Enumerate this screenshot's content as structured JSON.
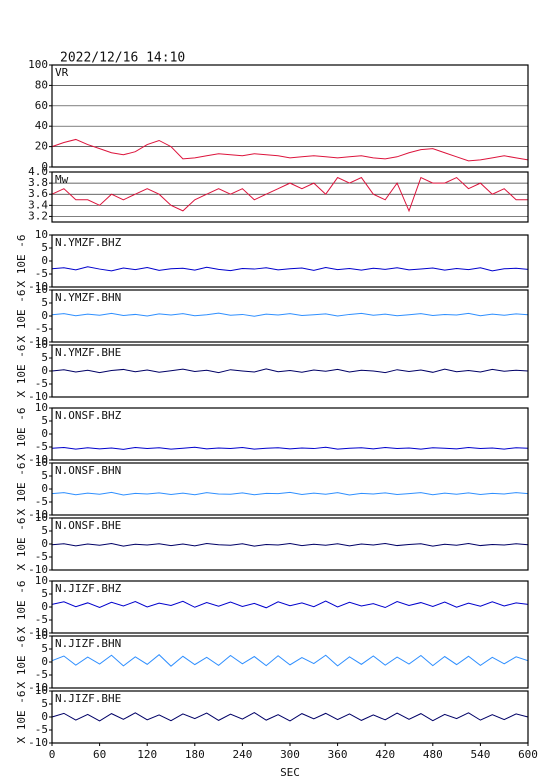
{
  "chart_data": [
    {
      "type": "line",
      "title": "2022/12/16 14:10",
      "label": "VR",
      "color": "#dc143c",
      "grid": true,
      "xlim": [
        0,
        600
      ],
      "ylim": [
        0,
        100
      ],
      "yticks": [
        0,
        20,
        40,
        60,
        80,
        100
      ],
      "x": [
        0,
        15,
        30,
        45,
        60,
        75,
        90,
        105,
        120,
        135,
        150,
        165,
        180,
        195,
        210,
        225,
        240,
        255,
        270,
        285,
        300,
        315,
        330,
        345,
        360,
        375,
        390,
        405,
        420,
        435,
        450,
        465,
        480,
        495,
        510,
        525,
        540,
        555,
        570,
        585,
        600
      ],
      "values": [
        20,
        24,
        27,
        22,
        18,
        14,
        12,
        15,
        22,
        26,
        20,
        8,
        9,
        11,
        13,
        12,
        11,
        13,
        12,
        11,
        9,
        10,
        11,
        10,
        9,
        10,
        11,
        9,
        8,
        10,
        14,
        17,
        18,
        14,
        10,
        6,
        7,
        9,
        11,
        9,
        7
      ]
    },
    {
      "type": "line",
      "label": "Mw",
      "color": "#dc143c",
      "grid": true,
      "xlim": [
        0,
        600
      ],
      "ylim": [
        3.1,
        4.0
      ],
      "yticks": [
        3.2,
        3.4,
        3.6,
        3.8,
        {
          "value": 4,
          "label": "4.0"
        }
      ],
      "x": [
        0,
        15,
        30,
        45,
        60,
        75,
        90,
        105,
        120,
        135,
        150,
        165,
        180,
        195,
        210,
        225,
        240,
        255,
        270,
        285,
        300,
        315,
        330,
        345,
        360,
        375,
        390,
        405,
        420,
        435,
        450,
        465,
        480,
        495,
        510,
        525,
        540,
        555,
        570,
        585,
        600
      ],
      "values": [
        3.6,
        3.7,
        3.5,
        3.5,
        3.4,
        3.6,
        3.5,
        3.6,
        3.7,
        3.6,
        3.4,
        3.3,
        3.5,
        3.6,
        3.7,
        3.6,
        3.7,
        3.5,
        3.6,
        3.7,
        3.8,
        3.7,
        3.8,
        3.6,
        3.9,
        3.8,
        3.9,
        3.6,
        3.5,
        3.8,
        3.3,
        3.9,
        3.8,
        3.8,
        3.9,
        3.7,
        3.8,
        3.6,
        3.7,
        3.5,
        3.5
      ]
    },
    {
      "type": "line",
      "label": "N.YMZF.BHZ",
      "ylabel": "X 10E -6",
      "color": "#0000cc",
      "xlim": [
        0,
        600
      ],
      "ylim": [
        -10,
        10
      ],
      "yticks": [
        -10,
        -5,
        0,
        5,
        10
      ],
      "x": [
        0,
        15,
        30,
        45,
        60,
        75,
        90,
        105,
        120,
        135,
        150,
        165,
        180,
        195,
        210,
        225,
        240,
        255,
        270,
        285,
        300,
        315,
        330,
        345,
        360,
        375,
        390,
        405,
        420,
        435,
        450,
        465,
        480,
        495,
        510,
        525,
        540,
        555,
        570,
        585,
        600
      ],
      "values": [
        -3,
        -2.6,
        -3.4,
        -2.2,
        -3.1,
        -3.8,
        -2.7,
        -3.3,
        -2.5,
        -3.6,
        -3.0,
        -2.8,
        -3.5,
        -2.4,
        -3.2,
        -3.7,
        -2.9,
        -3.1,
        -2.6,
        -3.4,
        -3.0,
        -2.7,
        -3.6,
        -2.5,
        -3.3,
        -2.9,
        -3.5,
        -2.8,
        -3.2,
        -2.6,
        -3.4,
        -3.1,
        -2.7,
        -3.5,
        -2.9,
        -3.3,
        -2.6,
        -3.8,
        -3.0,
        -2.8,
        -3.2
      ]
    },
    {
      "type": "line",
      "label": "N.YMZF.BHN",
      "ylabel": "X 10E -6",
      "color": "#2f8fff",
      "xlim": [
        0,
        600
      ],
      "ylim": [
        -10,
        10
      ],
      "yticks": [
        -10,
        -5,
        0,
        5,
        10
      ],
      "x": [
        0,
        15,
        30,
        45,
        60,
        75,
        90,
        105,
        120,
        135,
        150,
        165,
        180,
        195,
        210,
        225,
        240,
        255,
        270,
        285,
        300,
        315,
        330,
        345,
        360,
        375,
        390,
        405,
        420,
        435,
        450,
        465,
        480,
        495,
        510,
        525,
        540,
        555,
        570,
        585,
        600
      ],
      "values": [
        0.5,
        0.9,
        0.1,
        0.7,
        0.3,
        1.0,
        0.2,
        0.6,
        0.0,
        0.8,
        0.4,
        0.9,
        0.1,
        0.5,
        1.1,
        0.3,
        0.6,
        -0.1,
        0.7,
        0.4,
        0.9,
        0.2,
        0.5,
        0.8,
        0.0,
        0.6,
        1.0,
        0.3,
        0.7,
        0.1,
        0.5,
        0.9,
        0.2,
        0.6,
        0.4,
        1.0,
        0.1,
        0.7,
        0.3,
        0.8,
        0.5
      ]
    },
    {
      "type": "line",
      "label": "N.YMZF.BHE",
      "ylabel": "X 10E -6",
      "color": "#000066",
      "xlim": [
        0,
        600
      ],
      "ylim": [
        -10,
        10
      ],
      "yticks": [
        -10,
        -5,
        0,
        5,
        10
      ],
      "x": [
        0,
        15,
        30,
        45,
        60,
        75,
        90,
        105,
        120,
        135,
        150,
        165,
        180,
        195,
        210,
        225,
        240,
        255,
        270,
        285,
        300,
        315,
        330,
        345,
        360,
        375,
        390,
        405,
        420,
        435,
        450,
        465,
        480,
        495,
        510,
        525,
        540,
        555,
        570,
        585,
        600
      ],
      "values": [
        0,
        0.5,
        -0.4,
        0.3,
        -0.6,
        0.2,
        0.6,
        -0.3,
        0.4,
        -0.5,
        0.1,
        0.7,
        -0.2,
        0.3,
        -0.6,
        0.5,
        0.0,
        -0.4,
        0.8,
        -0.3,
        0.2,
        -0.5,
        0.4,
        -0.1,
        0.6,
        -0.4,
        0.3,
        0.0,
        -0.6,
        0.5,
        -0.2,
        0.4,
        -0.5,
        0.7,
        -0.3,
        0.2,
        -0.4,
        0.6,
        -0.1,
        0.3,
        0
      ]
    },
    {
      "type": "line",
      "label": "N.ONSF.BHZ",
      "ylabel": "X 10E -6",
      "color": "#0000cc",
      "xlim": [
        0,
        600
      ],
      "ylim": [
        -10,
        10
      ],
      "yticks": [
        -10,
        -5,
        0,
        5,
        10
      ],
      "x": [
        0,
        15,
        30,
        45,
        60,
        75,
        90,
        105,
        120,
        135,
        150,
        165,
        180,
        195,
        210,
        225,
        240,
        255,
        270,
        285,
        300,
        315,
        330,
        345,
        360,
        375,
        390,
        405,
        420,
        435,
        450,
        465,
        480,
        495,
        510,
        525,
        540,
        555,
        570,
        585,
        600
      ],
      "values": [
        -5.5,
        -5.2,
        -5.8,
        -5.3,
        -5.7,
        -5.4,
        -5.9,
        -5.2,
        -5.6,
        -5.3,
        -5.8,
        -5.5,
        -5.1,
        -5.7,
        -5.4,
        -5.6,
        -5.2,
        -5.8,
        -5.5,
        -5.3,
        -5.7,
        -5.4,
        -5.6,
        -5.1,
        -5.8,
        -5.5,
        -5.3,
        -5.7,
        -5.2,
        -5.6,
        -5.4,
        -5.8,
        -5.3,
        -5.5,
        -5.7,
        -5.2,
        -5.6,
        -5.4,
        -5.8,
        -5.3,
        -5.5
      ]
    },
    {
      "type": "line",
      "label": "N.ONSF.BHN",
      "ylabel": "X 10E -6",
      "color": "#2f8fff",
      "xlim": [
        0,
        600
      ],
      "ylim": [
        -10,
        10
      ],
      "yticks": [
        -10,
        -5,
        0,
        5,
        10
      ],
      "x": [
        0,
        15,
        30,
        45,
        60,
        75,
        90,
        105,
        120,
        135,
        150,
        165,
        180,
        195,
        210,
        225,
        240,
        255,
        270,
        285,
        300,
        315,
        330,
        345,
        360,
        375,
        390,
        405,
        420,
        435,
        450,
        465,
        480,
        495,
        510,
        525,
        540,
        555,
        570,
        585,
        600
      ],
      "values": [
        -1.8,
        -1.4,
        -2.2,
        -1.6,
        -2.0,
        -1.3,
        -2.3,
        -1.7,
        -1.9,
        -1.5,
        -2.1,
        -1.6,
        -2.2,
        -1.4,
        -1.9,
        -2.0,
        -1.5,
        -2.2,
        -1.7,
        -1.8,
        -1.3,
        -2.1,
        -1.6,
        -2.0,
        -1.4,
        -2.3,
        -1.7,
        -1.9,
        -1.5,
        -2.1,
        -1.8,
        -1.4,
        -2.2,
        -1.6,
        -2.0,
        -1.5,
        -2.1,
        -1.7,
        -1.9,
        -1.4,
        -1.8
      ]
    },
    {
      "type": "line",
      "label": "N.ONSF.BHE",
      "ylabel": "X 10E -6",
      "color": "#000066",
      "xlim": [
        0,
        600
      ],
      "ylim": [
        -10,
        10
      ],
      "yticks": [
        -10,
        -5,
        0,
        5,
        10
      ],
      "x": [
        0,
        15,
        30,
        45,
        60,
        75,
        90,
        105,
        120,
        135,
        150,
        165,
        180,
        195,
        210,
        225,
        240,
        255,
        270,
        285,
        300,
        315,
        330,
        345,
        360,
        375,
        390,
        405,
        420,
        435,
        450,
        465,
        480,
        495,
        510,
        525,
        540,
        555,
        570,
        585,
        600
      ],
      "values": [
        -0.3,
        0.1,
        -0.7,
        0.0,
        -0.5,
        0.2,
        -0.8,
        -0.1,
        -0.4,
        0.1,
        -0.6,
        0.0,
        -0.7,
        0.2,
        -0.3,
        -0.5,
        0.1,
        -0.8,
        -0.2,
        -0.4,
        0.2,
        -0.6,
        -0.1,
        -0.5,
        0.1,
        -0.7,
        0.0,
        -0.4,
        0.2,
        -0.6,
        -0.2,
        0.1,
        -0.8,
        -0.1,
        -0.5,
        0.2,
        -0.6,
        -0.2,
        -0.4,
        0.1,
        -0.3
      ]
    },
    {
      "type": "line",
      "label": "N.JIZF.BHZ",
      "ylabel": "X 10E -6",
      "color": "#0000cc",
      "xlim": [
        0,
        600
      ],
      "ylim": [
        -10,
        10
      ],
      "yticks": [
        -10,
        -5,
        0,
        5,
        10
      ],
      "x": [
        0,
        15,
        30,
        45,
        60,
        75,
        90,
        105,
        120,
        135,
        150,
        165,
        180,
        195,
        210,
        225,
        240,
        255,
        270,
        285,
        300,
        315,
        330,
        345,
        360,
        375,
        390,
        405,
        420,
        435,
        450,
        465,
        480,
        495,
        510,
        525,
        540,
        555,
        570,
        585,
        600
      ],
      "values": [
        1.0,
        2.0,
        0.1,
        1.6,
        -0.2,
        1.8,
        0.4,
        2.1,
        0.0,
        1.5,
        0.6,
        2.2,
        -0.1,
        1.7,
        0.3,
        1.9,
        0.2,
        1.4,
        -0.3,
        2.0,
        0.5,
        1.6,
        0.1,
        2.3,
        0.0,
        1.8,
        0.4,
        1.3,
        -0.2,
        2.1,
        0.6,
        1.7,
        0.2,
        1.9,
        -0.1,
        1.5,
        0.3,
        2.0,
        0.4,
        1.6,
        1.0
      ]
    },
    {
      "type": "line",
      "label": "N.JIZF.BHN",
      "ylabel": "X 10E -6",
      "color": "#2f8fff",
      "xlim": [
        0,
        600
      ],
      "ylim": [
        -10,
        10
      ],
      "yticks": [
        -10,
        -5,
        0,
        5,
        10
      ],
      "x": [
        0,
        15,
        30,
        45,
        60,
        75,
        90,
        105,
        120,
        135,
        150,
        165,
        180,
        195,
        210,
        225,
        240,
        255,
        270,
        285,
        300,
        315,
        330,
        345,
        360,
        375,
        390,
        405,
        420,
        435,
        450,
        465,
        480,
        495,
        510,
        525,
        540,
        555,
        570,
        585,
        600
      ],
      "values": [
        0.5,
        2.3,
        -1.2,
        1.9,
        -0.8,
        2.6,
        -1.5,
        2.0,
        -0.9,
        2.8,
        -1.6,
        2.2,
        -1.0,
        1.8,
        -1.3,
        2.5,
        -0.7,
        2.1,
        -1.4,
        2.4,
        -1.1,
        1.7,
        -0.6,
        2.6,
        -1.5,
        2.0,
        -0.9,
        2.3,
        -1.2,
        1.9,
        -0.8,
        2.5,
        -1.4,
        2.1,
        -1.0,
        2.2,
        -1.3,
        1.8,
        -0.7,
        2.0,
        0.5
      ]
    },
    {
      "type": "line",
      "label": "N.JIZF.BHE",
      "ylabel": "X 10E -6",
      "xlabel": "SEC",
      "color": "#000066",
      "xlim": [
        0,
        600
      ],
      "ylim": [
        -10,
        10
      ],
      "yticks": [
        -10,
        -5,
        0,
        5,
        10
      ],
      "xticks": [
        0,
        60,
        120,
        180,
        240,
        300,
        360,
        420,
        480,
        540,
        600
      ],
      "x": [
        0,
        15,
        30,
        45,
        60,
        75,
        90,
        105,
        120,
        135,
        150,
        165,
        180,
        195,
        210,
        225,
        240,
        255,
        270,
        285,
        300,
        315,
        330,
        345,
        360,
        375,
        390,
        405,
        420,
        435,
        450,
        465,
        480,
        495,
        510,
        525,
        540,
        555,
        570,
        585,
        600
      ],
      "values": [
        0,
        1.4,
        -1.2,
        1.0,
        -1.5,
        1.3,
        -0.9,
        1.6,
        -1.1,
        0.8,
        -1.4,
        1.2,
        -0.6,
        1.5,
        -1.3,
        1.1,
        -0.8,
        1.7,
        -1.2,
        0.9,
        -1.5,
        1.3,
        -0.7,
        1.4,
        -1.0,
        1.2,
        -1.3,
        0.8,
        -1.1,
        1.5,
        -0.9,
        1.3,
        -1.4,
        1.0,
        -0.6,
        1.6,
        -1.2,
        0.9,
        -1.0,
        1.2,
        0
      ]
    }
  ]
}
